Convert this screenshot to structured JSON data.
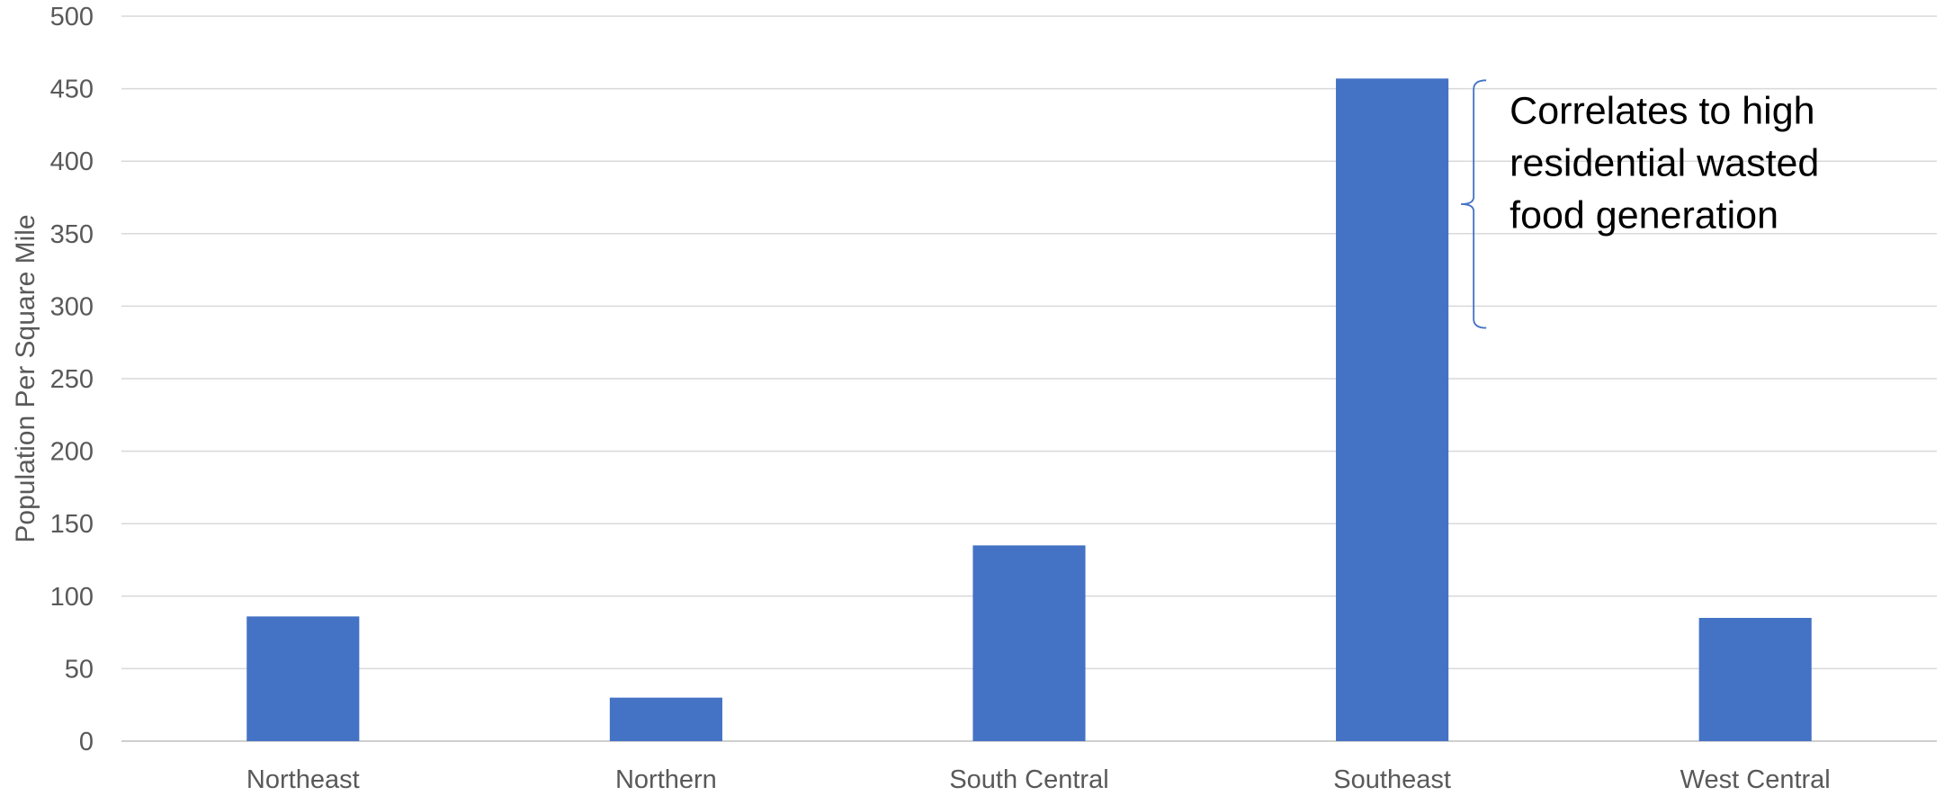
{
  "chart_data": {
    "type": "bar",
    "title": "",
    "xlabel": "",
    "ylabel": "Population Per Square Mile",
    "categories": [
      "Northeast",
      "Northern",
      "South Central",
      "Southeast",
      "West Central"
    ],
    "values": [
      86,
      30,
      135,
      457,
      85
    ],
    "ylim": [
      0,
      500
    ],
    "yticks": [
      0,
      50,
      100,
      150,
      200,
      250,
      300,
      350,
      400,
      450,
      500
    ],
    "grid": true,
    "legend": "none",
    "bar_color": "#4472c4",
    "annotation": {
      "lines": [
        "Correlates to high",
        "residential wasted",
        "food generation"
      ],
      "bracket_from": 285,
      "bracket_to": 457,
      "category": "Southeast"
    }
  }
}
